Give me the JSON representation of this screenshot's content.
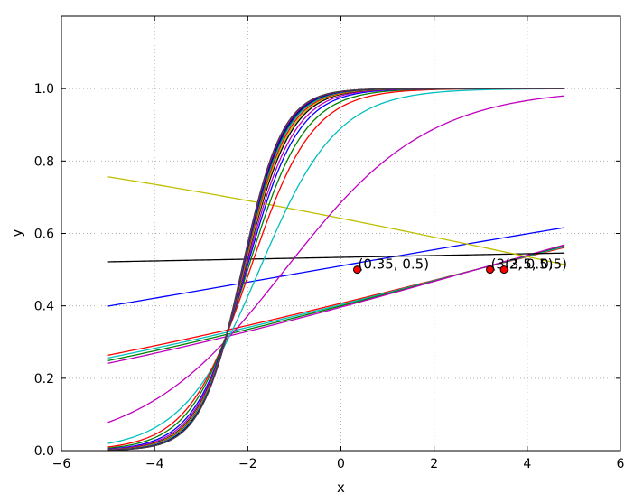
{
  "chart_data": {
    "type": "line",
    "title": "",
    "xlabel": "x",
    "ylabel": "y",
    "xlim": [
      -6,
      6
    ],
    "ylim": [
      0.0,
      1.2
    ],
    "xticks": [
      -6,
      -4,
      -2,
      0,
      2,
      4,
      6
    ],
    "xtick_labels": [
      "−6",
      "−4",
      "−2",
      "0",
      "2",
      "4",
      "6"
    ],
    "yticks": [
      0.0,
      0.2,
      0.4,
      0.6,
      0.8,
      1.0
    ],
    "ytick_labels": [
      "0.0",
      "0.2",
      "0.4",
      "0.6",
      "0.8",
      "1.0"
    ],
    "grid": true,
    "legend": "none",
    "x_range": [
      -5.0,
      4.8
    ],
    "sigmoid_curves": [
      {
        "color": "#ff0000",
        "x0": 2.9,
        "k": 0.13
      },
      {
        "color": "#00bfbf",
        "x0": 2.9,
        "k": 0.135
      },
      {
        "color": "#008000",
        "x0": 2.9,
        "k": 0.14
      },
      {
        "color": "#bf00bf",
        "x0": 2.9,
        "k": 0.145
      },
      {
        "color": "#0000ff",
        "x0": -0.46,
        "k": 0.09
      },
      {
        "color": "#000000",
        "x0": -13.6,
        "k": 0.01
      },
      {
        "color": "#bfbf00",
        "x0": 5.3,
        "k": -0.11
      },
      {
        "color": "#bf00bf",
        "x0": -1.2,
        "k": 0.65
      },
      {
        "color": "#00bfbf",
        "x0": -1.75,
        "k": 1.2
      },
      {
        "color": "#ff0000",
        "x0": -1.95,
        "k": 1.5
      },
      {
        "color": "#008000",
        "x0": -2.0,
        "k": 1.65
      },
      {
        "color": "#0000ff",
        "x0": -2.03,
        "k": 1.8
      },
      {
        "color": "#bf00bf",
        "x0": -2.05,
        "k": 1.9
      },
      {
        "color": "#000000",
        "x0": -2.07,
        "k": 2.0
      },
      {
        "color": "#bfbf00",
        "x0": -2.08,
        "k": 2.05
      },
      {
        "color": "#ff0000",
        "x0": -2.09,
        "k": 2.1
      },
      {
        "color": "#00bfbf",
        "x0": -2.1,
        "k": 2.15
      },
      {
        "color": "#008000",
        "x0": -2.1,
        "k": 2.2
      },
      {
        "color": "#0000ff",
        "x0": -2.11,
        "k": 2.22
      },
      {
        "color": "#000000",
        "x0": -2.12,
        "k": 2.25
      },
      {
        "color": "#bf00bf",
        "x0": -2.12,
        "k": 2.28
      },
      {
        "color": "#404040",
        "x0": -2.13,
        "k": 2.3
      }
    ],
    "points": [
      {
        "x": 0.35,
        "y": 0.5,
        "label": "(0.35, 0.5)",
        "fill": "#ff0000"
      },
      {
        "x": 3.2,
        "y": 0.5,
        "label": "(3.2, 0.5)",
        "fill": "#ff0000"
      },
      {
        "x": 3.5,
        "y": 0.5,
        "label": "(3.5, 0.5)",
        "fill": "#ff0000"
      }
    ]
  }
}
